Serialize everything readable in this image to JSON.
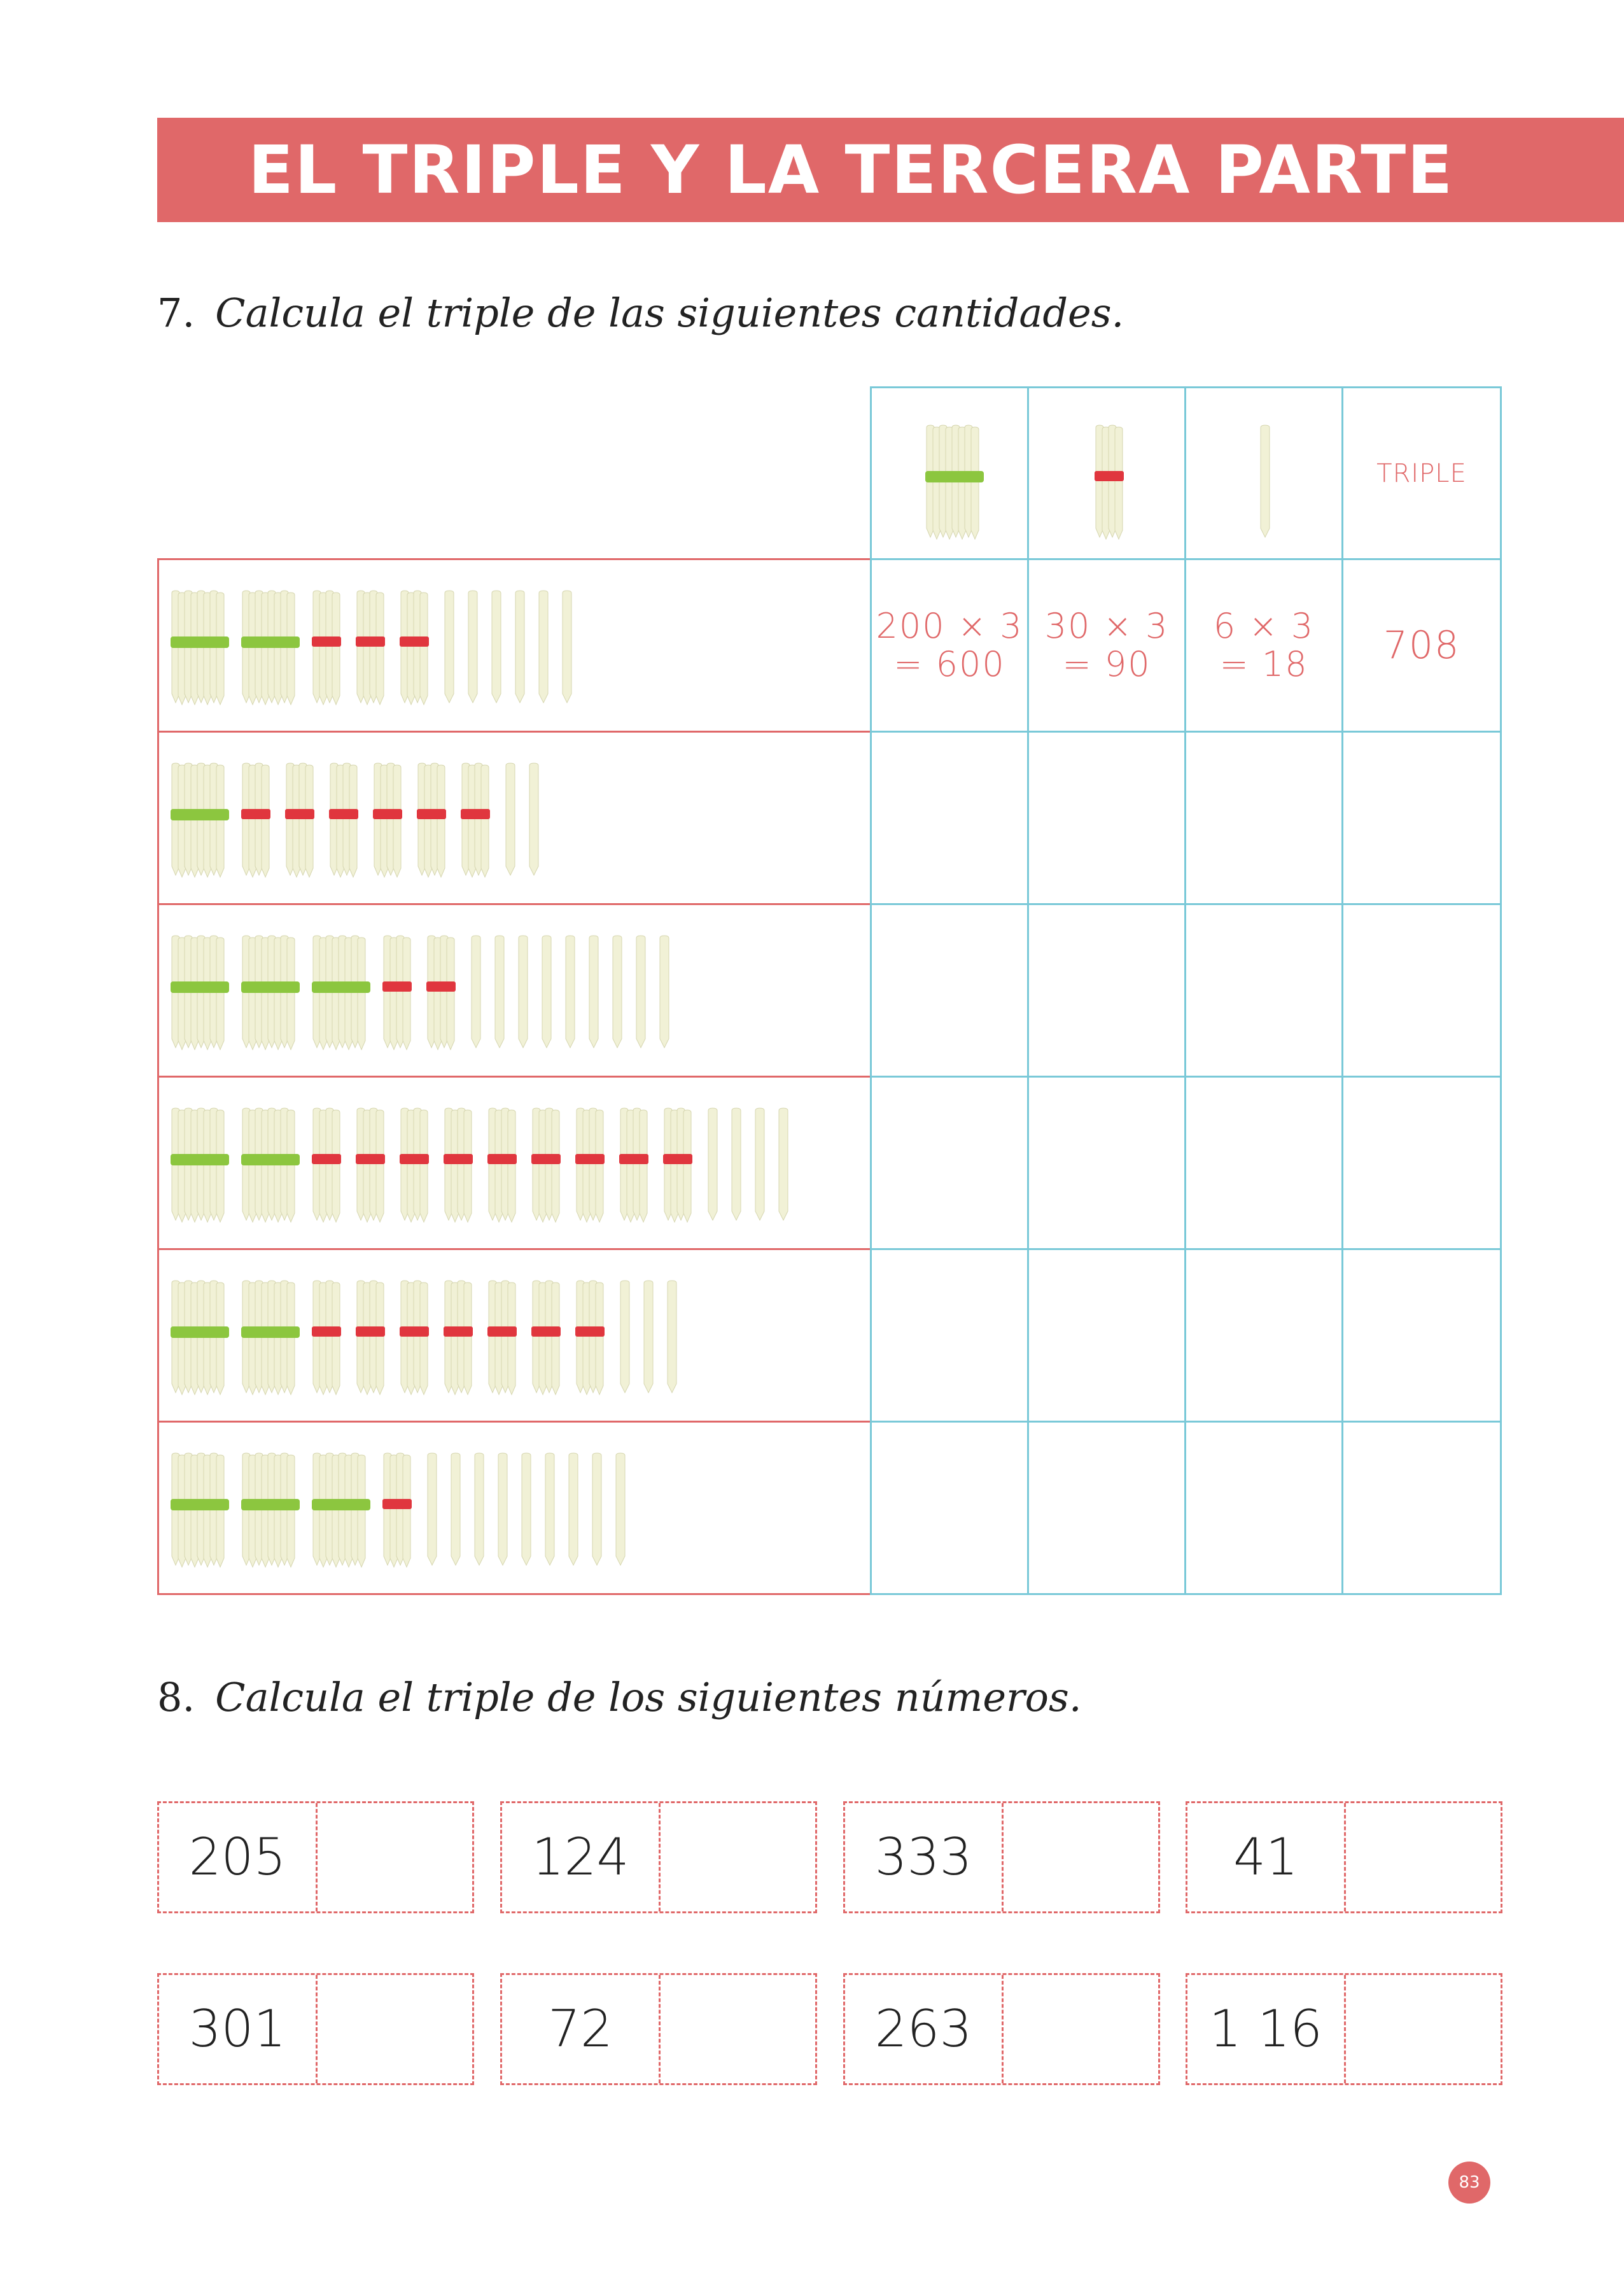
{
  "header": {
    "title": "EL TRIPLE Y LA TERCERA PARTE"
  },
  "exercise7": {
    "number": "7.",
    "instruction": "Calcula el triple de las siguientes cantidades.",
    "column_header": "TRIPLE",
    "icons": [
      "hundred-bundle-icon",
      "ten-bundle-icon",
      "single-stick-icon"
    ],
    "rows": [
      {
        "hundreds": 2,
        "tens": 3,
        "units": 6,
        "hundreds_answer": [
          "200 × 3",
          "= 600"
        ],
        "tens_answer": [
          "30 × 3",
          "= 90"
        ],
        "units_answer": [
          "6 × 3",
          "= 18"
        ],
        "triple": "708"
      },
      {
        "hundreds": 1,
        "tens": 6,
        "units": 2,
        "hundreds_answer": [],
        "tens_answer": [],
        "units_answer": [],
        "triple": ""
      },
      {
        "hundreds": 3,
        "tens": 2,
        "units": 9,
        "hundreds_answer": [],
        "tens_answer": [],
        "units_answer": [],
        "triple": ""
      },
      {
        "hundreds": 2,
        "tens": 9,
        "units": 4,
        "hundreds_answer": [],
        "tens_answer": [],
        "units_answer": [],
        "triple": ""
      },
      {
        "hundreds": 2,
        "tens": 7,
        "units": 3,
        "hundreds_answer": [],
        "tens_answer": [],
        "units_answer": [],
        "triple": ""
      },
      {
        "hundreds": 3,
        "tens": 1,
        "units": 9,
        "hundreds_answer": [],
        "tens_answer": [],
        "units_answer": [],
        "triple": ""
      }
    ]
  },
  "exercise8": {
    "number": "8.",
    "instruction": "Calcula el triple de los siguientes números.",
    "numbers": [
      "205",
      "124",
      "333",
      "41",
      "301",
      "72",
      "263",
      "1 16"
    ]
  },
  "page_number": "83",
  "colors": {
    "accent": "#e06869",
    "table_border": "#7ac9d8",
    "hundred_band": "#8cc63f",
    "ten_band": "#e0363e",
    "stick": "#f1f1d6"
  }
}
